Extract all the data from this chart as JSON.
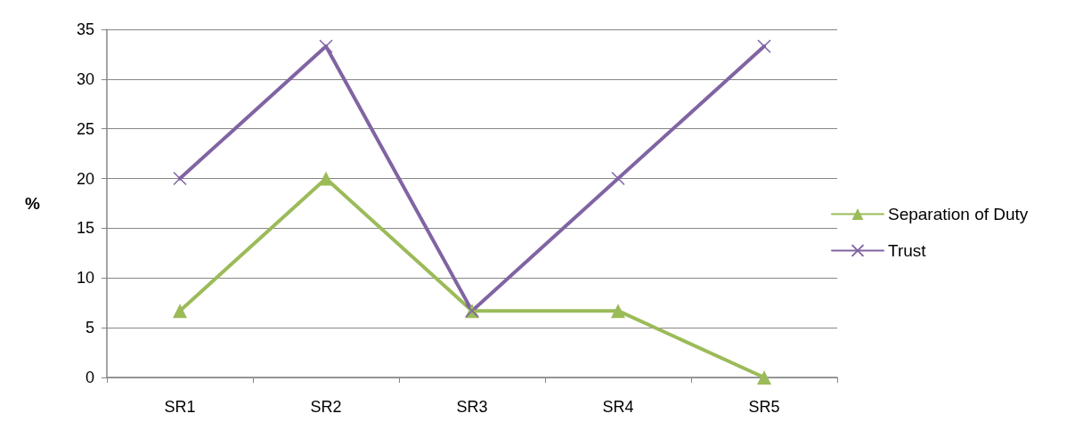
{
  "chart_data": {
    "type": "line",
    "ylabel": "%",
    "categories": [
      "SR1",
      "SR2",
      "SR3",
      "SR4",
      "SR5"
    ],
    "series": [
      {
        "name": "Separation of Duty",
        "color": "#9bbb59",
        "marker": "triangle",
        "values": [
          6.7,
          20,
          6.7,
          6.7,
          0
        ]
      },
      {
        "name": "Trust",
        "color": "#8064a2",
        "marker": "cross",
        "values": [
          20,
          33.3,
          6.7,
          20,
          33.3
        ]
      }
    ],
    "ylim": [
      0,
      35
    ],
    "yticks": [
      0,
      5,
      10,
      15,
      20,
      25,
      30,
      35
    ],
    "grid": "y",
    "legend": "right",
    "line_style": "solid"
  }
}
